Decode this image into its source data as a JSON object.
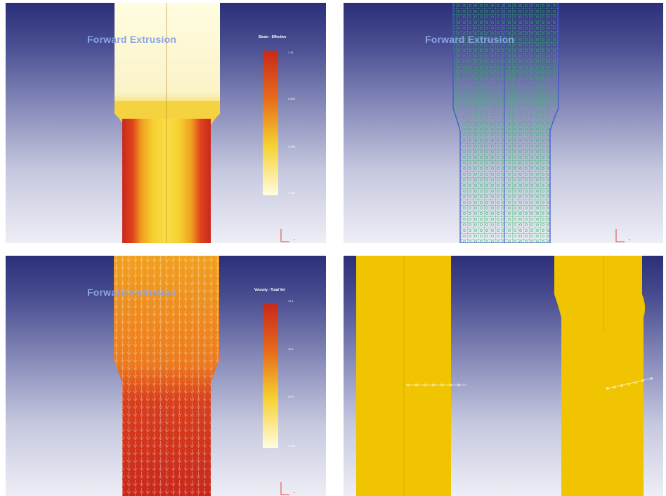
{
  "panels": {
    "strain": {
      "title": "Forward Extrusion",
      "legend_title": "Strain - Effective",
      "ticks": [
        "1.11",
        "0.833",
        "0.555",
        "0.000"
      ],
      "colors": {
        "high": "#c8281c",
        "mid": "#f0a020",
        "low": "#fffde0"
      }
    },
    "mesh": {
      "title": "Forward Extrusion",
      "colors": {
        "mesh": "#33b26b",
        "outline": "#3a56c9"
      }
    },
    "velocity": {
      "title": "Forward Extrusion",
      "legend_title": "Velocity - Total Vel",
      "ticks": [
        "16.1",
        "10.1",
        "5.03",
        "0.000"
      ],
      "colors": {
        "high": "#c8281c",
        "mid": "#f0a020",
        "low": "#fffde0"
      }
    },
    "die": {
      "colors": {
        "billet": "#f0c400"
      }
    }
  },
  "axis_glyph": "x"
}
